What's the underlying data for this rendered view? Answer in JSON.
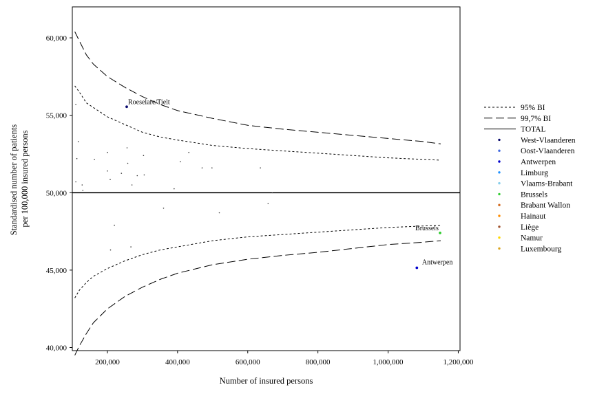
{
  "chart_data": {
    "type": "scatter",
    "title": "",
    "xlabel": "Number of insured persons",
    "ylabel_lines": [
      "Standardised number of patients",
      "per 100,000 insured persons"
    ],
    "xlim": [
      100000,
      1205000
    ],
    "ylim": [
      39800,
      62000
    ],
    "x_ticks": [
      200000,
      400000,
      600000,
      800000,
      1000000,
      1200000
    ],
    "x_tick_labels": [
      "200,000",
      "400,000",
      "600,000",
      "800,000",
      "1,000,000",
      "1,200,000"
    ],
    "y_ticks": [
      40000,
      45000,
      50000,
      55000,
      60000
    ],
    "y_tick_labels": [
      "40,000",
      "45,000",
      "50,000",
      "55,000",
      "60,000"
    ],
    "reference_total": 50000,
    "legend_placement": "right",
    "legend": [
      {
        "label": "95% BI",
        "kind": "short-dash",
        "color": "#000000"
      },
      {
        "label": "99,7% BI",
        "kind": "long-dash",
        "color": "#000000"
      },
      {
        "label": "TOTAL",
        "kind": "solid",
        "color": "#000000"
      },
      {
        "label": "West-Vlaanderen",
        "kind": "dot",
        "color": "#0a0a6e"
      },
      {
        "label": "Oost-Vlaanderen",
        "kind": "dot",
        "color": "#4169e1"
      },
      {
        "label": "Antwerpen",
        "kind": "dot",
        "color": "#0000cd"
      },
      {
        "label": "Limburg",
        "kind": "dot",
        "color": "#1e90ff"
      },
      {
        "label": "Vlaams-Brabant",
        "kind": "dot",
        "color": "#87ceeb"
      },
      {
        "label": "Brussels",
        "kind": "dot",
        "color": "#32cd32"
      },
      {
        "label": "Brabant Wallon",
        "kind": "dot",
        "color": "#d2691e"
      },
      {
        "label": "Hainaut",
        "kind": "dot",
        "color": "#ff8c00"
      },
      {
        "label": "Liège",
        "kind": "dot",
        "color": "#a0522d"
      },
      {
        "label": "Namur",
        "kind": "dot",
        "color": "#ffd700"
      },
      {
        "label": "Luxembourg",
        "kind": "dot",
        "color": "#daa520"
      }
    ],
    "bands": [
      {
        "name": "95% BI",
        "style": "short-dash",
        "x": [
          107000,
          120000,
          140000,
          160000,
          200000,
          250000,
          300000,
          350000,
          400000,
          500000,
          600000,
          700000,
          800000,
          900000,
          1000000,
          1100000,
          1150000
        ],
        "upper": [
          56900,
          56500,
          55800,
          55500,
          54900,
          54400,
          53900,
          53600,
          53400,
          53050,
          52850,
          52700,
          52550,
          52400,
          52250,
          52150,
          52100
        ],
        "lower": [
          43200,
          43700,
          44200,
          44600,
          45100,
          45600,
          46000,
          46300,
          46500,
          46900,
          47150,
          47300,
          47450,
          47600,
          47750,
          47850,
          47900
        ]
      },
      {
        "name": "99,7% BI",
        "style": "long-dash",
        "x": [
          107000,
          120000,
          140000,
          160000,
          200000,
          250000,
          300000,
          350000,
          400000,
          500000,
          600000,
          700000,
          800000,
          900000,
          1000000,
          1100000,
          1150000
        ],
        "upper": [
          60400,
          59800,
          58900,
          58300,
          57500,
          56800,
          56200,
          55700,
          55300,
          54800,
          54350,
          54100,
          53900,
          53700,
          53500,
          53300,
          53150
        ],
        "lower": [
          39500,
          40100,
          40900,
          41600,
          42500,
          43300,
          43900,
          44400,
          44800,
          45350,
          45700,
          45950,
          46150,
          46400,
          46650,
          46800,
          46900
        ]
      }
    ],
    "points": [
      {
        "x": 255000,
        "y": 55550,
        "color": "#0a0a6e",
        "label": "Roeselare/Tielt",
        "r": 1.9
      },
      {
        "x": 1082000,
        "y": 45150,
        "color": "#0000cd",
        "label": "Antwerpen",
        "r": 1.9
      },
      {
        "x": 1148000,
        "y": 47400,
        "color": "#32cd32",
        "label": "Brussels",
        "r": 1.9
      },
      {
        "x": 110000,
        "y": 55700,
        "color": "#333333",
        "label": "",
        "r": 0.8
      },
      {
        "x": 117000,
        "y": 53300,
        "color": "#333333",
        "label": "",
        "r": 0.8
      },
      {
        "x": 113000,
        "y": 52200,
        "color": "#333333",
        "label": "",
        "r": 0.8
      },
      {
        "x": 110000,
        "y": 50700,
        "color": "#333333",
        "label": "",
        "r": 0.8
      },
      {
        "x": 128000,
        "y": 50500,
        "color": "#333333",
        "label": "",
        "r": 0.8
      },
      {
        "x": 130000,
        "y": 50150,
        "color": "#333333",
        "label": "",
        "r": 0.8
      },
      {
        "x": 163000,
        "y": 52150,
        "color": "#333333",
        "label": "",
        "r": 0.8
      },
      {
        "x": 200000,
        "y": 52600,
        "color": "#333333",
        "label": "",
        "r": 0.8
      },
      {
        "x": 200000,
        "y": 51400,
        "color": "#333333",
        "label": "",
        "r": 0.8
      },
      {
        "x": 208000,
        "y": 50850,
        "color": "#333333",
        "label": "",
        "r": 0.8
      },
      {
        "x": 240000,
        "y": 51250,
        "color": "#333333",
        "label": "",
        "r": 0.8
      },
      {
        "x": 256000,
        "y": 52900,
        "color": "#333333",
        "label": "",
        "r": 0.8
      },
      {
        "x": 258000,
        "y": 51900,
        "color": "#333333",
        "label": "",
        "r": 0.8
      },
      {
        "x": 270000,
        "y": 50500,
        "color": "#333333",
        "label": "",
        "r": 0.8
      },
      {
        "x": 285000,
        "y": 51100,
        "color": "#333333",
        "label": "",
        "r": 0.8
      },
      {
        "x": 303000,
        "y": 52400,
        "color": "#333333",
        "label": "",
        "r": 0.8
      },
      {
        "x": 305000,
        "y": 51150,
        "color": "#333333",
        "label": "",
        "r": 0.8
      },
      {
        "x": 390000,
        "y": 50250,
        "color": "#333333",
        "label": "",
        "r": 0.8
      },
      {
        "x": 408000,
        "y": 52000,
        "color": "#333333",
        "label": "",
        "r": 0.8
      },
      {
        "x": 432000,
        "y": 52600,
        "color": "#333333",
        "label": "",
        "r": 0.8
      },
      {
        "x": 470000,
        "y": 51600,
        "color": "#333333",
        "label": "",
        "r": 0.8
      },
      {
        "x": 498000,
        "y": 51600,
        "color": "#333333",
        "label": "",
        "r": 0.8
      },
      {
        "x": 636000,
        "y": 51600,
        "color": "#333333",
        "label": "",
        "r": 0.8
      },
      {
        "x": 670000,
        "y": 50000,
        "color": "#333333",
        "label": "",
        "r": 0.8
      },
      {
        "x": 658000,
        "y": 49300,
        "color": "#333333",
        "label": "",
        "r": 0.8
      },
      {
        "x": 360000,
        "y": 49000,
        "color": "#333333",
        "label": "",
        "r": 0.8
      },
      {
        "x": 519000,
        "y": 48700,
        "color": "#333333",
        "label": "",
        "r": 0.8
      },
      {
        "x": 220000,
        "y": 47900,
        "color": "#333333",
        "label": "",
        "r": 0.8
      },
      {
        "x": 267000,
        "y": 46500,
        "color": "#333333",
        "label": "",
        "r": 0.8
      },
      {
        "x": 209000,
        "y": 46300,
        "color": "#333333",
        "label": "",
        "r": 0.8
      }
    ]
  }
}
